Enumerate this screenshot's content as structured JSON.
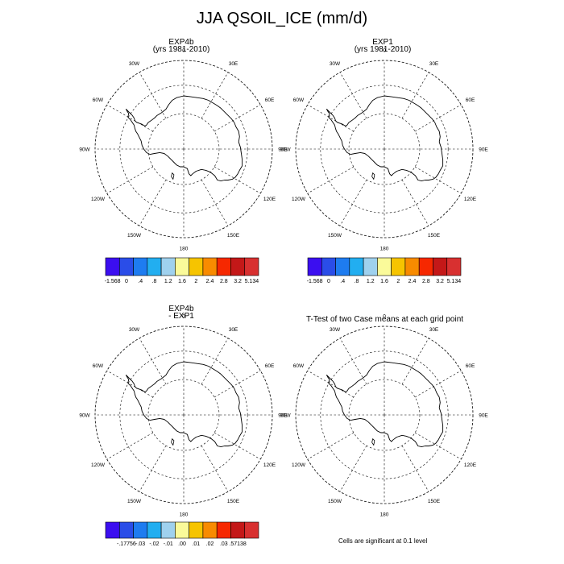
{
  "figure": {
    "title": "JJA QSOIL_ICE (mm/d)",
    "footnote": "Cells are significant at 0.1 level"
  },
  "panels": [
    {
      "id": "p1",
      "title_lines": [
        "EXP4b",
        "(yrs 1981-2010)"
      ]
    },
    {
      "id": "p2",
      "title_lines": [
        "EXP1",
        "(yrs 1981-2010)"
      ]
    },
    {
      "id": "p3",
      "title_lines": [
        "EXP4b",
        "- EXP1"
      ]
    },
    {
      "id": "p4",
      "title_lines": [
        "T-Test of two Case means at each grid point"
      ]
    }
  ],
  "map": {
    "projection": "south polar stereographic",
    "longitude_labels": [
      {
        "lon": 0,
        "label": "0"
      },
      {
        "lon": 30,
        "label": "30E"
      },
      {
        "lon": 60,
        "label": "60E"
      },
      {
        "lon": 90,
        "label": "90E"
      },
      {
        "lon": 120,
        "label": "120E"
      },
      {
        "lon": 150,
        "label": "150E"
      },
      {
        "lon": 180,
        "label": "180"
      },
      {
        "lon": -150,
        "label": "150W"
      },
      {
        "lon": -120,
        "label": "120W"
      },
      {
        "lon": -90,
        "label": "90W"
      },
      {
        "lon": -60,
        "label": "60W"
      },
      {
        "lon": -30,
        "label": "30W"
      }
    ],
    "colors": {
      "coast": "#000000",
      "grid": "#000000"
    }
  },
  "colorbars": {
    "climatology": {
      "colors": [
        "#3b0ef0",
        "#2a4de8",
        "#1e7cf0",
        "#22aef0",
        "#9fd1ee",
        "#fafa9a",
        "#f6c400",
        "#f88b00",
        "#f62800",
        "#c41818",
        "#d83030"
      ],
      "labels": [
        "-1.568",
        "0",
        ".4",
        ".8",
        "1.2",
        "1.6",
        "2",
        "2.4",
        "2.8",
        "3.2",
        "5.134"
      ]
    },
    "difference": {
      "colors": [
        "#3b0ef0",
        "#2a4de8",
        "#1e7cf0",
        "#22aef0",
        "#9fd1ee",
        "#fafa9a",
        "#f6c400",
        "#f88b00",
        "#f62800",
        "#c41818",
        "#d83030"
      ],
      "labels": [
        "-.17756",
        "-.03",
        "-.02",
        "-.01",
        ".00",
        ".01",
        ".02",
        ".03",
        ".57138"
      ]
    }
  }
}
